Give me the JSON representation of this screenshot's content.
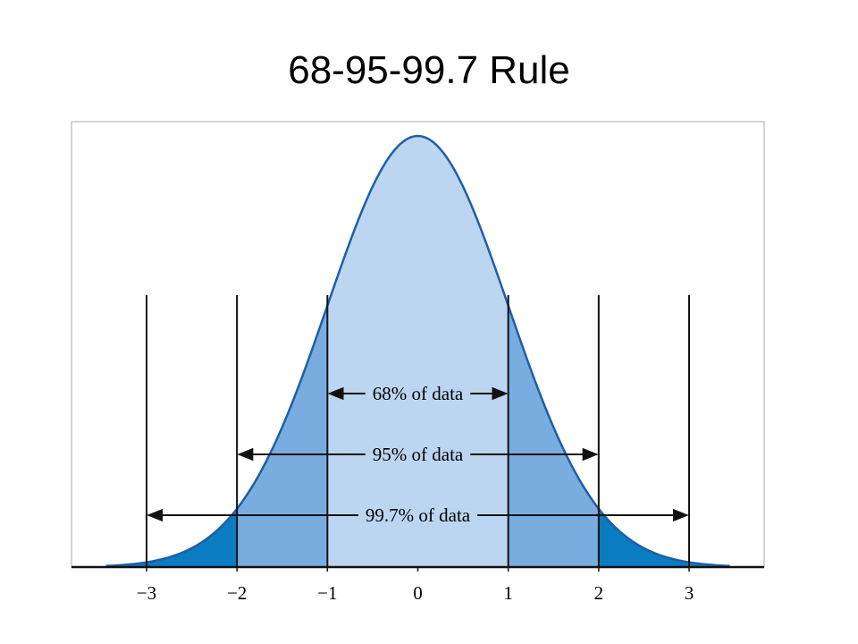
{
  "chart_data": {
    "type": "normal",
    "title": "68-95-99.7 Rule",
    "xlim": [
      -3.83,
      3.83
    ],
    "xticks": [
      {
        "value": -3,
        "label": "−3"
      },
      {
        "value": -2,
        "label": "−2"
      },
      {
        "value": -1,
        "label": "−1"
      },
      0,
      1,
      2,
      3
    ],
    "annotations": [
      {
        "label": "68% of data",
        "range": [
          -1,
          1
        ]
      },
      {
        "label": "95% of data",
        "range": [
          -2,
          2
        ]
      },
      {
        "label": "99.7% of data",
        "range": [
          -3,
          3
        ]
      }
    ],
    "curve_color": "#1f5ea6",
    "band_colors": [
      "#bcd6f1",
      "#79ade0",
      "#0a7cc1"
    ]
  }
}
